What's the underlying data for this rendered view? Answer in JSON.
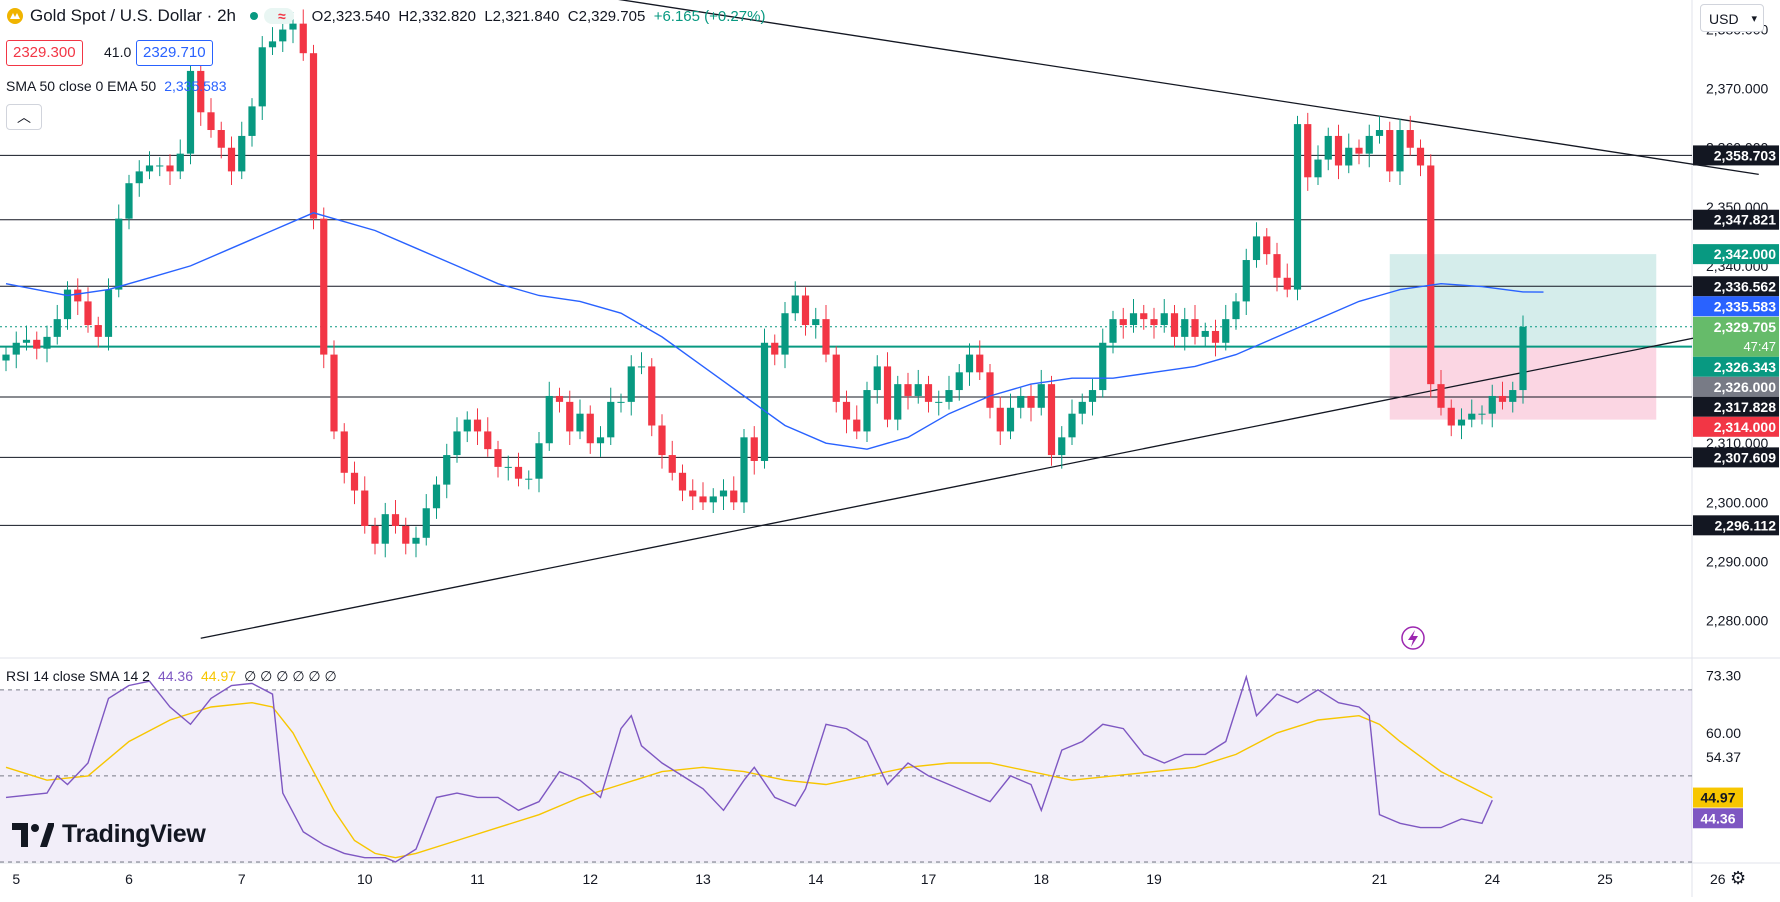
{
  "header": {
    "symbol": "Gold Spot / U.S. Dollar · 2h",
    "open": "O2,323.540",
    "high": "H2,332.820",
    "low": "L2,321.840",
    "close": "C2,329.705",
    "change": "+6.165 (+0.27%)"
  },
  "trade": {
    "sell": "2329.300",
    "spread": "41.0",
    "buy": "2329.710"
  },
  "sma_legend": {
    "label": "SMA 50 close 0 EMA 50",
    "value": "2,335.583"
  },
  "rsi_legend": {
    "label": "RSI 14 close SMA 14 2",
    "rsi": "44.36",
    "sma": "44.97",
    "extra": "∅ ∅ ∅ ∅ ∅ ∅"
  },
  "currency": "USD",
  "logo_text": "TradingView",
  "icons": [
    "gold-coin-icon",
    "chevron-up-icon",
    "chevron-down-icon",
    "lightning-icon",
    "settings-icon",
    "tradingview-logo-icon"
  ],
  "colors": {
    "up": "#089981",
    "down": "#f23645",
    "ema": "#2962ff",
    "rsi": "#7e57c2",
    "rsi_sma": "#f7c600",
    "target_zone": "#b2dfdb",
    "stop_zone": "#f8bbd0"
  },
  "chart_data": {
    "type": "candlestick",
    "symbol": "XAUUSD",
    "timeframe": "2h",
    "ylim": [
      2274,
      2385
    ],
    "y_ticks": [
      2280,
      2290,
      2300,
      2310,
      2320,
      2330,
      2340,
      2350,
      2360,
      2370,
      2380
    ],
    "x_ticks": [
      {
        "label": "5",
        "idx": 1
      },
      {
        "label": "6",
        "idx": 12
      },
      {
        "label": "7",
        "idx": 23
      },
      {
        "label": "10",
        "idx": 35
      },
      {
        "label": "11",
        "idx": 46
      },
      {
        "label": "12",
        "idx": 57
      },
      {
        "label": "13",
        "idx": 68
      },
      {
        "label": "14",
        "idx": 79
      },
      {
        "label": "17",
        "idx": 90
      },
      {
        "label": "18",
        "idx": 101
      },
      {
        "label": "19",
        "idx": 112
      },
      {
        "label": "21",
        "idx": 134
      },
      {
        "label": "24",
        "idx": 145
      },
      {
        "label": "25",
        "idx": 156
      },
      {
        "label": "26",
        "idx": 167
      }
    ],
    "candles_close": [
      2325,
      2327,
      2327.5,
      2326,
      2328,
      2331,
      2336,
      2334,
      2330,
      2328,
      2336,
      2348,
      2354,
      2356,
      2357,
      2357,
      2356,
      2359,
      2373,
      2366,
      2363,
      2360,
      2356,
      2362,
      2367,
      2377,
      2378,
      2380,
      2381,
      2376,
      2348,
      2325,
      2312,
      2305,
      2302,
      2296,
      2293,
      2298,
      2296,
      2293,
      2294,
      2299,
      2303,
      2308,
      2312,
      2314,
      2312,
      2309,
      2306,
      2306,
      2304,
      2304,
      2310,
      2318,
      2317,
      2312,
      2315,
      2310,
      2311,
      2317,
      2317,
      2323,
      2323,
      2313,
      2308,
      2305,
      2302,
      2301,
      2300,
      2301,
      2302,
      2300,
      2311,
      2307,
      2327,
      2325,
      2332,
      2335,
      2330,
      2331,
      2325,
      2317,
      2314,
      2312,
      2319,
      2323,
      2314,
      2320,
      2318,
      2320,
      2317,
      2317,
      2319,
      2322,
      2325,
      2322,
      2316,
      2312,
      2316,
      2318,
      2316,
      2320,
      2308,
      2311,
      2315,
      2317,
      2319,
      2327,
      2331,
      2330,
      2332,
      2331,
      2330,
      2332,
      2328,
      2331,
      2328,
      2329,
      2327,
      2331,
      2334,
      2341,
      2345,
      2342,
      2338,
      2336,
      2364,
      2355,
      2358,
      2362,
      2357,
      2360,
      2359,
      2362,
      2363,
      2356,
      2363,
      2360,
      2357,
      2320,
      2316,
      2313,
      2314,
      2315,
      2315,
      2318,
      2317,
      2319,
      2329.705
    ],
    "ema50": {
      "name": "EMA 50",
      "last": 2335.583,
      "points": [
        [
          0,
          2337
        ],
        [
          6,
          2335
        ],
        [
          10,
          2336
        ],
        [
          14,
          2338
        ],
        [
          18,
          2340
        ],
        [
          22,
          2343
        ],
        [
          26,
          2346
        ],
        [
          30,
          2349
        ],
        [
          32,
          2348
        ],
        [
          36,
          2346
        ],
        [
          40,
          2343
        ],
        [
          44,
          2340
        ],
        [
          48,
          2337
        ],
        [
          52,
          2335
        ],
        [
          56,
          2334
        ],
        [
          60,
          2332
        ],
        [
          64,
          2328
        ],
        [
          68,
          2323
        ],
        [
          72,
          2318
        ],
        [
          76,
          2313
        ],
        [
          80,
          2310
        ],
        [
          84,
          2309
        ],
        [
          88,
          2311
        ],
        [
          92,
          2315
        ],
        [
          96,
          2318
        ],
        [
          100,
          2320
        ],
        [
          104,
          2321
        ],
        [
          108,
          2321
        ],
        [
          112,
          2322
        ],
        [
          116,
          2323
        ],
        [
          120,
          2325
        ],
        [
          124,
          2328
        ],
        [
          128,
          2331
        ],
        [
          132,
          2334
        ],
        [
          134,
          2335
        ],
        [
          136,
          2336
        ],
        [
          140,
          2337
        ],
        [
          144,
          2336.5
        ],
        [
          148,
          2335.6
        ],
        [
          150,
          2335.583
        ]
      ]
    },
    "horizontal_levels": [
      2358.703,
      2347.821,
      2336.562,
      2326.343,
      2317.828,
      2307.609,
      2296.112
    ],
    "axis_labels": [
      {
        "value": 2358.703,
        "text": "2,358.703",
        "color": "#131722"
      },
      {
        "value": 2347.821,
        "text": "2,347.821",
        "color": "#131722"
      },
      {
        "value": 2342.0,
        "text": "2,342.000",
        "color": "#089981"
      },
      {
        "value": 2336.562,
        "text": "2,336.562",
        "color": "#131722"
      },
      {
        "value": 2335.583,
        "text": "2,335.583",
        "color": "#2962ff"
      },
      {
        "value": 2329.705,
        "text": "2,329.705",
        "color": "#66bb6a",
        "sub": "47:47"
      },
      {
        "value": 2326.343,
        "text": "2,326.343",
        "color": "#089981"
      },
      {
        "value": 2326.0,
        "text": "2,326.000",
        "color": "#787b86"
      },
      {
        "value": 2317.828,
        "text": "2,317.828",
        "color": "#131722"
      },
      {
        "value": 2314.0,
        "text": "2,314.000",
        "color": "#f23645"
      },
      {
        "value": 2307.609,
        "text": "2,307.609",
        "color": "#131722"
      },
      {
        "value": 2296.112,
        "text": "2,296.112",
        "color": "#131722"
      }
    ],
    "trendlines": [
      {
        "from": [
          0,
          2401
        ],
        "to": [
          171,
          2355.5
        ]
      },
      {
        "from": [
          19,
          2277
        ],
        "to": [
          171,
          2330
        ]
      }
    ],
    "position": {
      "entry": 2326.343,
      "target": 2342.0,
      "stop": 2314.0,
      "start_idx": 135,
      "end_idx": 161
    },
    "rsi": {
      "ylim": [
        30,
        76
      ],
      "levels": [
        70,
        50,
        30
      ],
      "y_ticks": [
        {
          "v": 73.3,
          "t": "73.30"
        },
        {
          "v": 60.0,
          "t": "60.00"
        },
        {
          "v": 54.37,
          "t": "54.37"
        },
        {
          "v": 40.0,
          "t": "40.00"
        }
      ],
      "last_rsi": 44.36,
      "last_sma": 44.97,
      "rsi_points": [
        [
          0,
          45
        ],
        [
          4,
          46
        ],
        [
          5,
          50
        ],
        [
          6,
          48
        ],
        [
          8,
          53
        ],
        [
          10,
          68
        ],
        [
          12,
          71
        ],
        [
          14,
          72
        ],
        [
          16,
          66
        ],
        [
          18,
          62
        ],
        [
          20,
          68
        ],
        [
          22,
          71
        ],
        [
          24,
          71.5
        ],
        [
          26,
          69
        ],
        [
          27,
          46
        ],
        [
          29,
          37
        ],
        [
          31,
          34
        ],
        [
          33,
          32
        ],
        [
          35,
          31
        ],
        [
          37,
          31
        ],
        [
          38,
          30
        ],
        [
          40,
          33
        ],
        [
          42,
          45
        ],
        [
          44,
          46
        ],
        [
          46,
          45
        ],
        [
          48,
          45
        ],
        [
          50,
          42
        ],
        [
          52,
          44
        ],
        [
          54,
          51
        ],
        [
          56,
          49
        ],
        [
          58,
          45
        ],
        [
          60,
          61
        ],
        [
          61,
          64
        ],
        [
          62,
          57
        ],
        [
          64,
          53
        ],
        [
          66,
          50
        ],
        [
          68,
          47
        ],
        [
          70,
          42
        ],
        [
          72,
          49
        ],
        [
          73,
          52
        ],
        [
          75,
          45
        ],
        [
          77,
          43
        ],
        [
          78,
          47
        ],
        [
          80,
          62
        ],
        [
          82,
          61
        ],
        [
          84,
          58
        ],
        [
          86,
          48
        ],
        [
          88,
          53
        ],
        [
          90,
          50
        ],
        [
          92,
          48
        ],
        [
          94,
          46
        ],
        [
          96,
          44
        ],
        [
          98,
          50
        ],
        [
          100,
          48
        ],
        [
          101,
          42
        ],
        [
          103,
          56
        ],
        [
          105,
          58
        ],
        [
          107,
          62
        ],
        [
          109,
          61
        ],
        [
          111,
          55
        ],
        [
          113,
          53
        ],
        [
          115,
          55
        ],
        [
          117,
          55
        ],
        [
          119,
          58
        ],
        [
          121,
          73
        ],
        [
          122,
          64
        ],
        [
          124,
          69
        ],
        [
          126,
          67
        ],
        [
          128,
          70
        ],
        [
          130,
          67
        ],
        [
          132,
          66
        ],
        [
          133,
          64
        ],
        [
          134,
          41
        ],
        [
          136,
          39
        ],
        [
          138,
          38
        ],
        [
          140,
          38
        ],
        [
          142,
          40
        ],
        [
          144,
          39
        ],
        [
          145,
          44.36
        ]
      ],
      "sma_points": [
        [
          0,
          52
        ],
        [
          4,
          49
        ],
        [
          8,
          50
        ],
        [
          12,
          58
        ],
        [
          16,
          63
        ],
        [
          20,
          66
        ],
        [
          24,
          67
        ],
        [
          26,
          66
        ],
        [
          28,
          60
        ],
        [
          30,
          51
        ],
        [
          32,
          42
        ],
        [
          34,
          35
        ],
        [
          36,
          32
        ],
        [
          38,
          31
        ],
        [
          40,
          32
        ],
        [
          44,
          35
        ],
        [
          48,
          38
        ],
        [
          52,
          41
        ],
        [
          56,
          45
        ],
        [
          60,
          48
        ],
        [
          64,
          51
        ],
        [
          68,
          52
        ],
        [
          72,
          51
        ],
        [
          76,
          49
        ],
        [
          80,
          48
        ],
        [
          84,
          50
        ],
        [
          88,
          52
        ],
        [
          92,
          53
        ],
        [
          96,
          53
        ],
        [
          100,
          51
        ],
        [
          104,
          49
        ],
        [
          108,
          50
        ],
        [
          112,
          51
        ],
        [
          116,
          52
        ],
        [
          120,
          55
        ],
        [
          124,
          60
        ],
        [
          128,
          63
        ],
        [
          132,
          64
        ],
        [
          134,
          62
        ],
        [
          136,
          58
        ],
        [
          140,
          51
        ],
        [
          145,
          44.97
        ]
      ]
    }
  }
}
